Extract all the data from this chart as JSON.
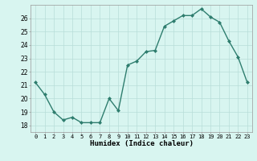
{
  "x": [
    0,
    1,
    2,
    3,
    4,
    5,
    6,
    7,
    8,
    9,
    10,
    11,
    12,
    13,
    14,
    15,
    16,
    17,
    18,
    19,
    20,
    21,
    22,
    23
  ],
  "y": [
    21.2,
    20.3,
    19.0,
    18.4,
    18.6,
    18.2,
    18.2,
    18.2,
    20.0,
    19.1,
    22.5,
    22.8,
    23.5,
    23.6,
    25.4,
    25.8,
    26.2,
    26.2,
    26.7,
    26.1,
    25.7,
    24.3,
    23.1,
    21.2
  ],
  "line_color": "#2e7d6e",
  "marker": "D",
  "marker_size": 2.0,
  "background_color": "#d8f5f0",
  "grid_color": "#b8ddd8",
  "xlabel": "Humidex (Indice chaleur)",
  "ylim": [
    17.5,
    27.0
  ],
  "xlim": [
    -0.5,
    23.5
  ],
  "yticks": [
    18,
    19,
    20,
    21,
    22,
    23,
    24,
    25,
    26
  ],
  "xtick_labels": [
    "0",
    "1",
    "2",
    "3",
    "4",
    "5",
    "6",
    "7",
    "8",
    "9",
    "10",
    "11",
    "12",
    "13",
    "14",
    "15",
    "16",
    "17",
    "18",
    "19",
    "20",
    "21",
    "22",
    "23"
  ]
}
